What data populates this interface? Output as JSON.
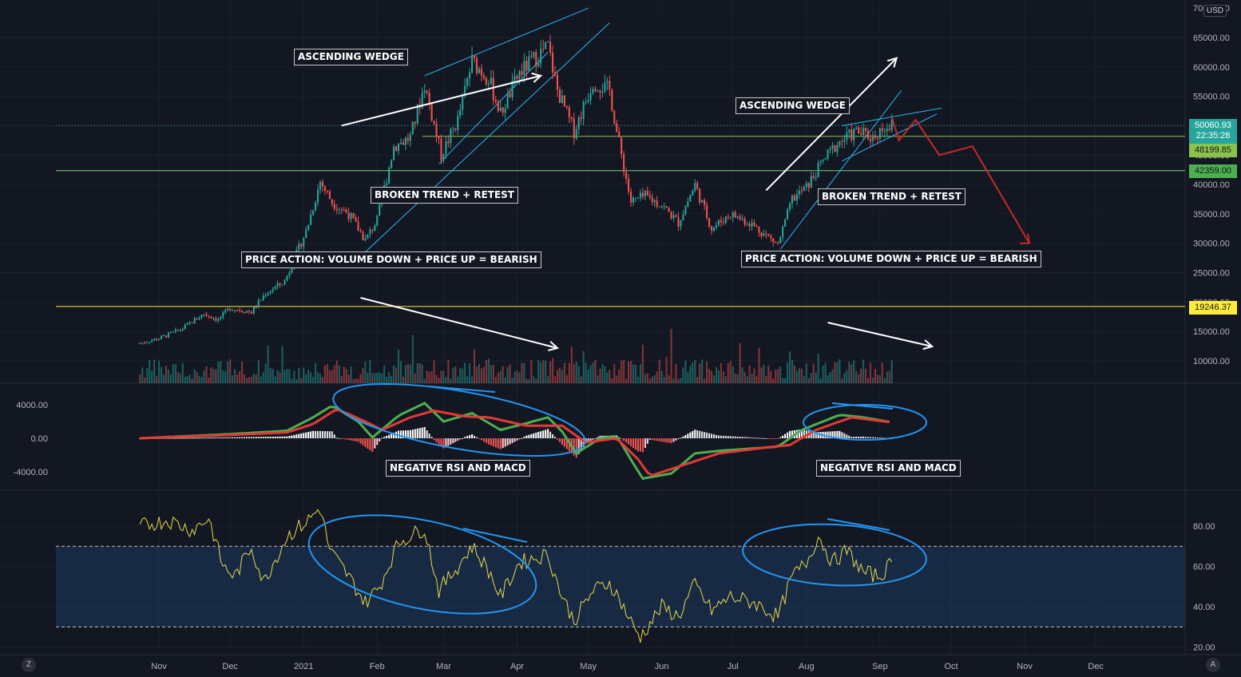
{
  "currency": "USD",
  "price_axis_labels": [
    "70000.00",
    "65000.00",
    "60000.00",
    "55000.00",
    "50000.00",
    "45000.00",
    "40000.00",
    "35000.00",
    "30000.00",
    "25000.00",
    "20000.00",
    "15000.00",
    "10000.00"
  ],
  "macd_axis_labels": [
    "4000.00",
    "0.00",
    "-4000.00"
  ],
  "rsi_axis_labels": [
    "80.00",
    "60.00",
    "40.00",
    "20.00"
  ],
  "time_labels": [
    "Nov",
    "Dec",
    "2021",
    "Feb",
    "Mar",
    "Apr",
    "May",
    "Jun",
    "Jul",
    "Aug",
    "Sep",
    "Oct",
    "Nov",
    "Dec"
  ],
  "price_badge": {
    "price": "50060.93",
    "countdown": "22:35:28",
    "color": "#26a69a"
  },
  "levels": [
    {
      "value": 48199.85,
      "label": "48199.85",
      "color": "#8bc34a"
    },
    {
      "value": 42359.0,
      "label": "42359.00",
      "color": "#81c784"
    },
    {
      "value": 19246.37,
      "label": "19246.37",
      "color": "#ffeb3b"
    }
  ],
  "annotations": [
    "ASCENDING WEDGE",
    "BROKEN TREND + RETEST",
    "PRICE ACTION: VOLUME DOWN + PRICE UP = BEARISH",
    "NEGATIVE RSI AND MACD",
    "ASCENDING WEDGE",
    "BROKEN TREND + RETEST",
    "PRICE ACTION: VOLUME DOWN + PRICE UP = BEARISH",
    "NEGATIVE RSI AND MACD"
  ],
  "corner_left": "Z",
  "corner_right": "A",
  "colors": {
    "background": "#131722",
    "up": "#26a69a",
    "down": "#ef5350",
    "macd": "#4caf50",
    "signal": "#e53935",
    "rsi": "#e6d84a",
    "trendline": "#29b6f6",
    "drawing": "#2196f3",
    "projection": "#c62828"
  },
  "chart_data": [
    {
      "type": "candlestick",
      "title": "",
      "y_unit": "USD",
      "ylim": [
        5000,
        70000
      ],
      "x_range": [
        "2020-10-24",
        "2021-12-31"
      ],
      "close_series": [
        [
          "2020-10-24",
          13000
        ],
        [
          "2020-11-01",
          13800
        ],
        [
          "2020-11-10",
          15300
        ],
        [
          "2020-11-20",
          18000
        ],
        [
          "2020-11-26",
          17000
        ],
        [
          "2020-12-01",
          19000
        ],
        [
          "2020-12-10",
          18300
        ],
        [
          "2020-12-16",
          21500
        ],
        [
          "2020-12-24",
          23500
        ],
        [
          "2021-01-02",
          32000
        ],
        [
          "2021-01-08",
          40500
        ],
        [
          "2021-01-13",
          37000
        ],
        [
          "2021-01-20",
          35000
        ],
        [
          "2021-01-27",
          30500
        ],
        [
          "2021-02-01",
          34000
        ],
        [
          "2021-02-08",
          46500
        ],
        [
          "2021-02-15",
          48000
        ],
        [
          "2021-02-21",
          57000
        ],
        [
          "2021-02-28",
          45000
        ],
        [
          "2021-03-07",
          51000
        ],
        [
          "2021-03-13",
          61000
        ],
        [
          "2021-03-20",
          58000
        ],
        [
          "2021-03-25",
          52000
        ],
        [
          "2021-04-02",
          59000
        ],
        [
          "2021-04-14",
          63500
        ],
        [
          "2021-04-18",
          56000
        ],
        [
          "2021-04-25",
          49000
        ],
        [
          "2021-05-03",
          57500
        ],
        [
          "2021-05-10",
          56000
        ],
        [
          "2021-05-13",
          49000
        ],
        [
          "2021-05-19",
          37000
        ],
        [
          "2021-05-25",
          38000
        ],
        [
          "2021-06-01",
          36500
        ],
        [
          "2021-06-08",
          33500
        ],
        [
          "2021-06-15",
          40000
        ],
        [
          "2021-06-22",
          32500
        ],
        [
          "2021-06-30",
          35000
        ],
        [
          "2021-07-08",
          33500
        ],
        [
          "2021-07-20",
          29800
        ],
        [
          "2021-07-26",
          37500
        ],
        [
          "2021-08-01",
          39500
        ],
        [
          "2021-08-08",
          44000
        ],
        [
          "2021-08-14",
          47000
        ],
        [
          "2021-08-22",
          49000
        ],
        [
          "2021-08-29",
          48000
        ],
        [
          "2021-09-03",
          50000
        ],
        [
          "2021-09-06",
          50060.93
        ]
      ],
      "volume_peaks_note": "",
      "projection": [
        [
          "2021-09-06",
          51500
        ],
        [
          "2021-09-09",
          47500
        ],
        [
          "2021-09-16",
          51000
        ],
        [
          "2021-09-26",
          45000
        ],
        [
          "2021-10-10",
          46500
        ],
        [
          "2021-11-03",
          30000
        ]
      ]
    },
    {
      "type": "line",
      "title": "",
      "series": [
        {
          "name": "",
          "values": [
            [
              "2020-10-24",
              0
            ],
            [
              "2020-12-01",
              500
            ],
            [
              "2020-12-25",
              900
            ],
            [
              "2021-01-05",
              2500
            ],
            [
              "2021-01-13",
              3900
            ],
            [
              "2021-01-24",
              2000
            ],
            [
              "2021-01-30",
              100
            ],
            [
              "2021-02-10",
              2700
            ],
            [
              "2021-02-21",
              4200
            ],
            [
              "2021-03-01",
              2000
            ],
            [
              "2021-03-13",
              3000
            ],
            [
              "2021-03-25",
              1000
            ],
            [
              "2021-04-05",
              1800
            ],
            [
              "2021-04-14",
              2500
            ],
            [
              "2021-04-20",
              800
            ],
            [
              "2021-04-26",
              -1800
            ],
            [
              "2021-05-06",
              0
            ],
            [
              "2021-05-13",
              300
            ],
            [
              "2021-05-20",
              -3000
            ],
            [
              "2021-05-24",
              -4800
            ],
            [
              "2021-06-05",
              -4200
            ],
            [
              "2021-06-15",
              -1800
            ],
            [
              "2021-06-25",
              -1500
            ],
            [
              "2021-07-10",
              -1200
            ],
            [
              "2021-07-20",
              -1000
            ],
            [
              "2021-07-30",
              1000
            ],
            [
              "2021-08-08",
              2000
            ],
            [
              "2021-08-15",
              2800
            ],
            [
              "2021-08-25",
              2500
            ],
            [
              "2021-09-06",
              1900
            ]
          ]
        },
        {
          "name": "",
          "values": [
            [
              "2020-10-24",
              0
            ],
            [
              "2020-12-01",
              400
            ],
            [
              "2020-12-25",
              700
            ],
            [
              "2021-01-05",
              1700
            ],
            [
              "2021-01-15",
              3500
            ],
            [
              "2021-01-27",
              2000
            ],
            [
              "2021-02-03",
              1000
            ],
            [
              "2021-02-15",
              2500
            ],
            [
              "2021-02-25",
              3300
            ],
            [
              "2021-03-10",
              2600
            ],
            [
              "2021-03-20",
              2500
            ],
            [
              "2021-04-05",
              1500
            ],
            [
              "2021-04-20",
              1500
            ],
            [
              "2021-04-30",
              -500
            ],
            [
              "2021-05-13",
              0
            ],
            [
              "2021-05-22",
              -2500
            ],
            [
              "2021-05-27",
              -4500
            ],
            [
              "2021-06-10",
              -3200
            ],
            [
              "2021-06-25",
              -1800
            ],
            [
              "2021-07-15",
              -1100
            ],
            [
              "2021-07-25",
              -800
            ],
            [
              "2021-08-05",
              1000
            ],
            [
              "2021-08-20",
              2500
            ],
            [
              "2021-09-06",
              1900
            ]
          ]
        }
      ],
      "ylim": [
        -6000,
        6000
      ]
    },
    {
      "type": "line",
      "title": "",
      "ylim": [
        20,
        90
      ],
      "bands": [
        30,
        70
      ],
      "series": [
        {
          "name": "",
          "values": [
            [
              "2020-10-24",
              80
            ],
            [
              "2020-11-05",
              83
            ],
            [
              "2020-11-15",
              78
            ],
            [
              "2020-11-22",
              84
            ],
            [
              "2020-11-28",
              60
            ],
            [
              "2020-12-03",
              55
            ],
            [
              "2020-12-10",
              70
            ],
            [
              "2020-12-15",
              52
            ],
            [
              "2020-12-25",
              75
            ],
            [
              "2021-01-02",
              82
            ],
            [
              "2021-01-08",
              89
            ],
            [
              "2021-01-12",
              68
            ],
            [
              "2021-01-20",
              55
            ],
            [
              "2021-01-27",
              42
            ],
            [
              "2021-02-02",
              50
            ],
            [
              "2021-02-10",
              72
            ],
            [
              "2021-02-21",
              79
            ],
            [
              "2021-02-27",
              48
            ],
            [
              "2021-03-07",
              60
            ],
            [
              "2021-03-13",
              70
            ],
            [
              "2021-03-20",
              58
            ],
            [
              "2021-03-25",
              45
            ],
            [
              "2021-04-02",
              62
            ],
            [
              "2021-04-14",
              66
            ],
            [
              "2021-04-20",
              45
            ],
            [
              "2021-04-25",
              33
            ],
            [
              "2021-05-03",
              48
            ],
            [
              "2021-05-10",
              52
            ],
            [
              "2021-05-15",
              42
            ],
            [
              "2021-05-20",
              30
            ],
            [
              "2021-05-23",
              25
            ],
            [
              "2021-06-01",
              40
            ],
            [
              "2021-06-08",
              35
            ],
            [
              "2021-06-15",
              51
            ],
            [
              "2021-06-22",
              38
            ],
            [
              "2021-06-30",
              45
            ],
            [
              "2021-07-10",
              42
            ],
            [
              "2021-07-20",
              35
            ],
            [
              "2021-07-26",
              55
            ],
            [
              "2021-08-01",
              62
            ],
            [
              "2021-08-06",
              75
            ],
            [
              "2021-08-12",
              62
            ],
            [
              "2021-08-18",
              68
            ],
            [
              "2021-08-25",
              57
            ],
            [
              "2021-09-01",
              55
            ],
            [
              "2021-09-06",
              62
            ]
          ]
        }
      ]
    }
  ]
}
